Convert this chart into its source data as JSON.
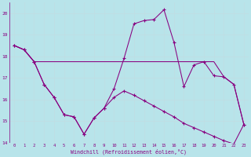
{
  "xlabel": "Windchill (Refroidissement éolien,°C)",
  "background_color": "#b8e4ea",
  "grid_color": "#c8e8ee",
  "line_color": "#880080",
  "x_values": [
    0,
    1,
    2,
    3,
    4,
    5,
    6,
    7,
    8,
    9,
    10,
    11,
    12,
    13,
    14,
    15,
    16,
    17,
    18,
    19,
    20,
    21,
    22,
    23
  ],
  "series_zigzag": [
    18.5,
    18.3,
    17.75,
    16.7,
    16.1,
    15.3,
    15.2,
    14.4,
    15.15,
    15.6,
    16.5,
    17.9,
    19.5,
    19.65,
    19.7,
    20.15,
    18.65,
    16.6,
    17.6,
    17.75,
    17.1,
    17.05,
    16.7,
    14.85
  ],
  "series_flat": [
    18.5,
    18.3,
    17.75,
    17.75,
    17.75,
    17.75,
    17.75,
    17.75,
    17.75,
    17.75,
    17.75,
    17.75,
    17.75,
    17.75,
    17.75,
    17.75,
    17.75,
    17.75,
    17.75,
    17.75,
    17.75,
    17.05,
    16.7,
    14.85
  ],
  "series_decline": [
    18.5,
    18.3,
    17.75,
    16.7,
    16.1,
    15.3,
    15.2,
    14.4,
    15.15,
    15.6,
    16.1,
    16.4,
    16.2,
    15.95,
    15.7,
    15.45,
    15.2,
    14.9,
    14.7,
    14.5,
    14.3,
    14.1,
    13.95,
    14.85
  ],
  "ylim": [
    14,
    20.5
  ],
  "xlim": [
    -0.5,
    23.5
  ],
  "yticks": [
    14,
    15,
    16,
    17,
    18,
    19,
    20
  ],
  "xticks": [
    0,
    1,
    2,
    3,
    4,
    5,
    6,
    7,
    8,
    9,
    10,
    11,
    12,
    13,
    14,
    15,
    16,
    17,
    18,
    19,
    20,
    21,
    22,
    23
  ],
  "figsize": [
    3.2,
    2.0
  ],
  "dpi": 100
}
